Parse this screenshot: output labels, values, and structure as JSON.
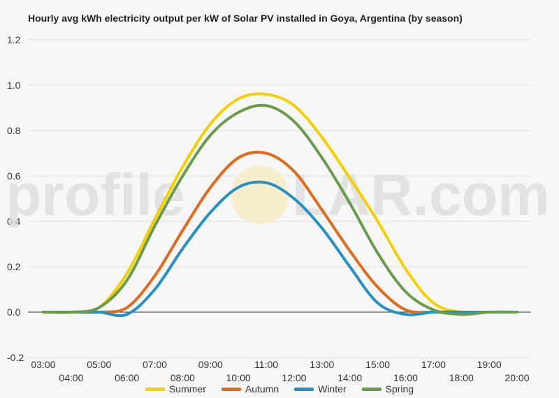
{
  "title": "Hourly avg kWh electricity output per kW of Solar PV installed in Goya, Argentina (by season)",
  "watermark": {
    "left": "profile",
    "right": "LAR.com"
  },
  "chart_data": {
    "type": "line",
    "title": "Hourly avg kWh electricity output per kW of Solar PV installed in Goya, Argentina (by season)",
    "xlabel": "",
    "ylabel": "",
    "x": [
      "03:00",
      "04:00",
      "05:00",
      "06:00",
      "07:00",
      "08:00",
      "09:00",
      "10:00",
      "11:00",
      "12:00",
      "13:00",
      "14:00",
      "15:00",
      "16:00",
      "17:00",
      "18:00",
      "19:00",
      "20:00"
    ],
    "ylim": [
      -0.2,
      1.2
    ],
    "yticks": [
      "1.2",
      "1.0",
      "0.8",
      "0.6",
      "0.4",
      "0.2",
      "0.0",
      "-0.2"
    ],
    "grid": true,
    "legend_position": "bottom",
    "series": [
      {
        "name": "Summer",
        "color": "#f5d000",
        "values": [
          0.0,
          0.0,
          0.02,
          0.17,
          0.41,
          0.64,
          0.83,
          0.94,
          0.96,
          0.91,
          0.77,
          0.59,
          0.4,
          0.19,
          0.04,
          0.0,
          0.0,
          0.0
        ]
      },
      {
        "name": "Autumn",
        "color": "#e26b1b",
        "values": [
          0.0,
          0.0,
          0.0,
          0.02,
          0.16,
          0.36,
          0.55,
          0.68,
          0.7,
          0.62,
          0.45,
          0.27,
          0.11,
          0.01,
          0.0,
          0.0,
          0.0,
          0.0
        ]
      },
      {
        "name": "Winter",
        "color": "#2491c4",
        "values": [
          0.0,
          0.0,
          0.0,
          -0.01,
          0.1,
          0.28,
          0.44,
          0.55,
          0.57,
          0.5,
          0.37,
          0.2,
          0.04,
          -0.01,
          0.0,
          0.0,
          0.0,
          0.0
        ]
      },
      {
        "name": "Spring",
        "color": "#6a9b4a",
        "values": [
          0.0,
          0.0,
          0.02,
          0.14,
          0.38,
          0.6,
          0.78,
          0.88,
          0.91,
          0.84,
          0.68,
          0.48,
          0.26,
          0.09,
          0.01,
          -0.01,
          0.0,
          0.0
        ]
      }
    ]
  }
}
